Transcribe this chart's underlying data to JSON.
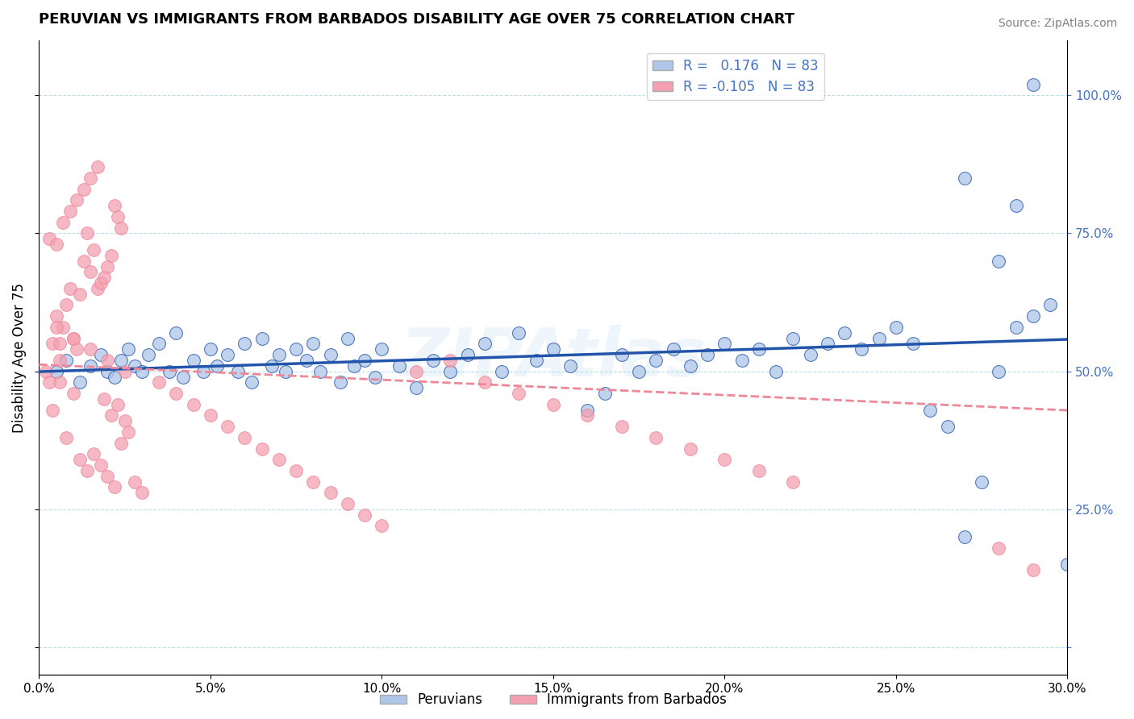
{
  "title": "PERUVIAN VS IMMIGRANTS FROM BARBADOS DISABILITY AGE OVER 75 CORRELATION CHART",
  "source": "Source: ZipAtlas.com",
  "ylabel": "Disability Age Over 75",
  "ytick_labels": [
    "",
    "25.0%",
    "50.0%",
    "75.0%",
    "100.0%"
  ],
  "xmin": 0.0,
  "xmax": 0.3,
  "ymin": -0.05,
  "ymax": 1.1,
  "R_peru": 0.176,
  "R_barb": -0.105,
  "N_peru": 83,
  "N_barb": 83,
  "color_peru": "#aec6e8",
  "color_barb": "#f4a0b0",
  "color_line_peru": "#2255AA",
  "color_line_barb": "#ee8899",
  "legend_label_peru": "Peruvians",
  "legend_label_barb": "Immigrants from Barbados",
  "watermark": "ZIPAtlas",
  "peru_x": [
    0.005,
    0.008,
    0.012,
    0.015,
    0.018,
    0.02,
    0.022,
    0.024,
    0.026,
    0.028,
    0.03,
    0.032,
    0.035,
    0.038,
    0.04,
    0.042,
    0.045,
    0.048,
    0.05,
    0.052,
    0.055,
    0.058,
    0.06,
    0.062,
    0.065,
    0.068,
    0.07,
    0.072,
    0.075,
    0.078,
    0.08,
    0.082,
    0.085,
    0.088,
    0.09,
    0.092,
    0.095,
    0.098,
    0.1,
    0.105,
    0.11,
    0.115,
    0.12,
    0.125,
    0.13,
    0.135,
    0.14,
    0.145,
    0.15,
    0.155,
    0.16,
    0.165,
    0.17,
    0.175,
    0.18,
    0.185,
    0.19,
    0.195,
    0.2,
    0.205,
    0.21,
    0.215,
    0.22,
    0.225,
    0.23,
    0.235,
    0.24,
    0.245,
    0.25,
    0.255,
    0.26,
    0.265,
    0.27,
    0.275,
    0.28,
    0.285,
    0.29,
    0.295,
    0.3,
    0.27,
    0.28,
    0.285,
    0.29
  ],
  "peru_y": [
    0.5,
    0.52,
    0.48,
    0.51,
    0.53,
    0.5,
    0.49,
    0.52,
    0.54,
    0.51,
    0.5,
    0.53,
    0.55,
    0.5,
    0.57,
    0.49,
    0.52,
    0.5,
    0.54,
    0.51,
    0.53,
    0.5,
    0.55,
    0.48,
    0.56,
    0.51,
    0.53,
    0.5,
    0.54,
    0.52,
    0.55,
    0.5,
    0.53,
    0.48,
    0.56,
    0.51,
    0.52,
    0.49,
    0.54,
    0.51,
    0.47,
    0.52,
    0.5,
    0.53,
    0.55,
    0.5,
    0.57,
    0.52,
    0.54,
    0.51,
    0.43,
    0.46,
    0.53,
    0.5,
    0.52,
    0.54,
    0.51,
    0.53,
    0.55,
    0.52,
    0.54,
    0.5,
    0.56,
    0.53,
    0.55,
    0.57,
    0.54,
    0.56,
    0.58,
    0.55,
    0.43,
    0.4,
    0.2,
    0.3,
    0.5,
    0.58,
    0.6,
    0.62,
    0.15,
    0.85,
    0.7,
    0.8,
    1.02
  ],
  "barb_x": [
    0.002,
    0.004,
    0.005,
    0.006,
    0.007,
    0.008,
    0.009,
    0.01,
    0.011,
    0.012,
    0.013,
    0.014,
    0.015,
    0.016,
    0.017,
    0.018,
    0.019,
    0.02,
    0.021,
    0.022,
    0.023,
    0.024,
    0.003,
    0.005,
    0.007,
    0.009,
    0.011,
    0.013,
    0.015,
    0.017,
    0.019,
    0.021,
    0.023,
    0.025,
    0.004,
    0.006,
    0.008,
    0.01,
    0.012,
    0.014,
    0.016,
    0.018,
    0.02,
    0.022,
    0.024,
    0.026,
    0.028,
    0.03,
    0.035,
    0.04,
    0.045,
    0.05,
    0.055,
    0.06,
    0.065,
    0.07,
    0.075,
    0.08,
    0.085,
    0.09,
    0.095,
    0.1,
    0.11,
    0.12,
    0.13,
    0.14,
    0.15,
    0.16,
    0.17,
    0.18,
    0.19,
    0.2,
    0.21,
    0.22,
    0.005,
    0.01,
    0.015,
    0.02,
    0.025,
    0.003,
    0.006,
    0.28,
    0.29
  ],
  "barb_y": [
    0.5,
    0.55,
    0.6,
    0.52,
    0.58,
    0.62,
    0.65,
    0.56,
    0.54,
    0.64,
    0.7,
    0.75,
    0.68,
    0.72,
    0.65,
    0.66,
    0.67,
    0.69,
    0.71,
    0.8,
    0.78,
    0.76,
    0.74,
    0.73,
    0.77,
    0.79,
    0.81,
    0.83,
    0.85,
    0.87,
    0.45,
    0.42,
    0.44,
    0.41,
    0.43,
    0.48,
    0.38,
    0.46,
    0.34,
    0.32,
    0.35,
    0.33,
    0.31,
    0.29,
    0.37,
    0.39,
    0.3,
    0.28,
    0.48,
    0.46,
    0.44,
    0.42,
    0.4,
    0.38,
    0.36,
    0.34,
    0.32,
    0.3,
    0.28,
    0.26,
    0.24,
    0.22,
    0.5,
    0.52,
    0.48,
    0.46,
    0.44,
    0.42,
    0.4,
    0.38,
    0.36,
    0.34,
    0.32,
    0.3,
    0.58,
    0.56,
    0.54,
    0.52,
    0.5,
    0.48,
    0.55,
    0.18,
    0.14
  ]
}
